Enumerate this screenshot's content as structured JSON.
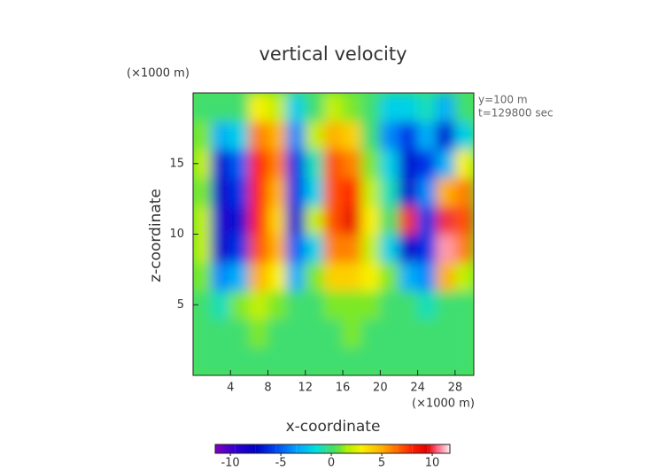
{
  "chart_data": {
    "type": "contour",
    "title": "vertical velocity",
    "x_label": "x-coordinate",
    "y_label": "z-coordinate",
    "x_unit": "(×1000 m)",
    "y_unit": "(×1000 m)",
    "annotations": [
      "y=100 m",
      "t=129800 sec"
    ],
    "xlim": [
      0,
      30
    ],
    "ylim": [
      0,
      20
    ],
    "xticks": [
      4,
      8,
      12,
      16,
      20,
      24,
      28
    ],
    "yticks": [
      5,
      10,
      15
    ],
    "x": [
      1,
      3,
      5,
      7,
      9,
      11,
      13,
      15,
      17,
      19,
      21,
      23,
      25,
      27,
      29
    ],
    "y": [
      1,
      3,
      5,
      7,
      9,
      11,
      13,
      15,
      17,
      19
    ],
    "z": [
      [
        0,
        0,
        0,
        0,
        0,
        0,
        0,
        0,
        0,
        0,
        0,
        0,
        0,
        0,
        0
      ],
      [
        0,
        0,
        0,
        1,
        0,
        0,
        0,
        0,
        1,
        0,
        0,
        0,
        0,
        0,
        0
      ],
      [
        0,
        -1,
        1,
        2,
        1,
        0,
        0,
        1,
        1,
        1,
        0,
        0,
        -1,
        0,
        0
      ],
      [
        1,
        -4,
        -3,
        5,
        3,
        -3,
        1,
        4,
        4,
        3,
        1,
        -3,
        -4,
        5,
        2
      ],
      [
        2,
        -8,
        -6,
        7,
        5,
        -5,
        -2,
        6,
        6,
        2,
        -2,
        -8,
        -6,
        11,
        6
      ],
      [
        2,
        -9,
        -7,
        8,
        4,
        -7,
        2,
        7,
        9,
        3,
        0,
        10,
        -6,
        10,
        7
      ],
      [
        1,
        -8,
        -6,
        8,
        5,
        -6,
        -2,
        7,
        8,
        2,
        -1,
        -8,
        -4,
        5,
        6
      ],
      [
        2,
        -7,
        -5,
        8,
        6,
        -6,
        -1,
        7,
        6,
        1,
        -2,
        -7,
        -6,
        -3,
        3
      ],
      [
        1,
        -3,
        -2,
        6,
        5,
        -4,
        2,
        5,
        4,
        0,
        -4,
        -6,
        -3,
        -7,
        -2
      ],
      [
        0,
        0,
        0,
        3,
        2,
        -2,
        0,
        2,
        1,
        0,
        -2,
        -2,
        -1,
        -3,
        0
      ]
    ],
    "colorbar_lim": [
      -11.5,
      11.75
    ],
    "colorbar_ticks": [
      -10,
      -5,
      0,
      5,
      10
    ],
    "colormap": [
      {
        "value": -11.5,
        "color": "#8000c0"
      },
      {
        "value": -9.5,
        "color": "#3000d0"
      },
      {
        "value": -7.5,
        "color": "#0000c8"
      },
      {
        "value": -5.5,
        "color": "#0048f0"
      },
      {
        "value": -3.5,
        "color": "#00a0ff"
      },
      {
        "value": -1.5,
        "color": "#00e0e0"
      },
      {
        "value": -0.5,
        "color": "#30dc90"
      },
      {
        "value": 0.5,
        "color": "#50e050"
      },
      {
        "value": 1.5,
        "color": "#a8f000"
      },
      {
        "value": 3,
        "color": "#f8f000"
      },
      {
        "value": 5,
        "color": "#ffb000"
      },
      {
        "value": 6.5,
        "color": "#ff6a00"
      },
      {
        "value": 8,
        "color": "#ff2000"
      },
      {
        "value": 9.5,
        "color": "#e00000"
      },
      {
        "value": 10.5,
        "color": "#ff6080"
      },
      {
        "value": 11.75,
        "color": "#fff0f0"
      }
    ]
  }
}
